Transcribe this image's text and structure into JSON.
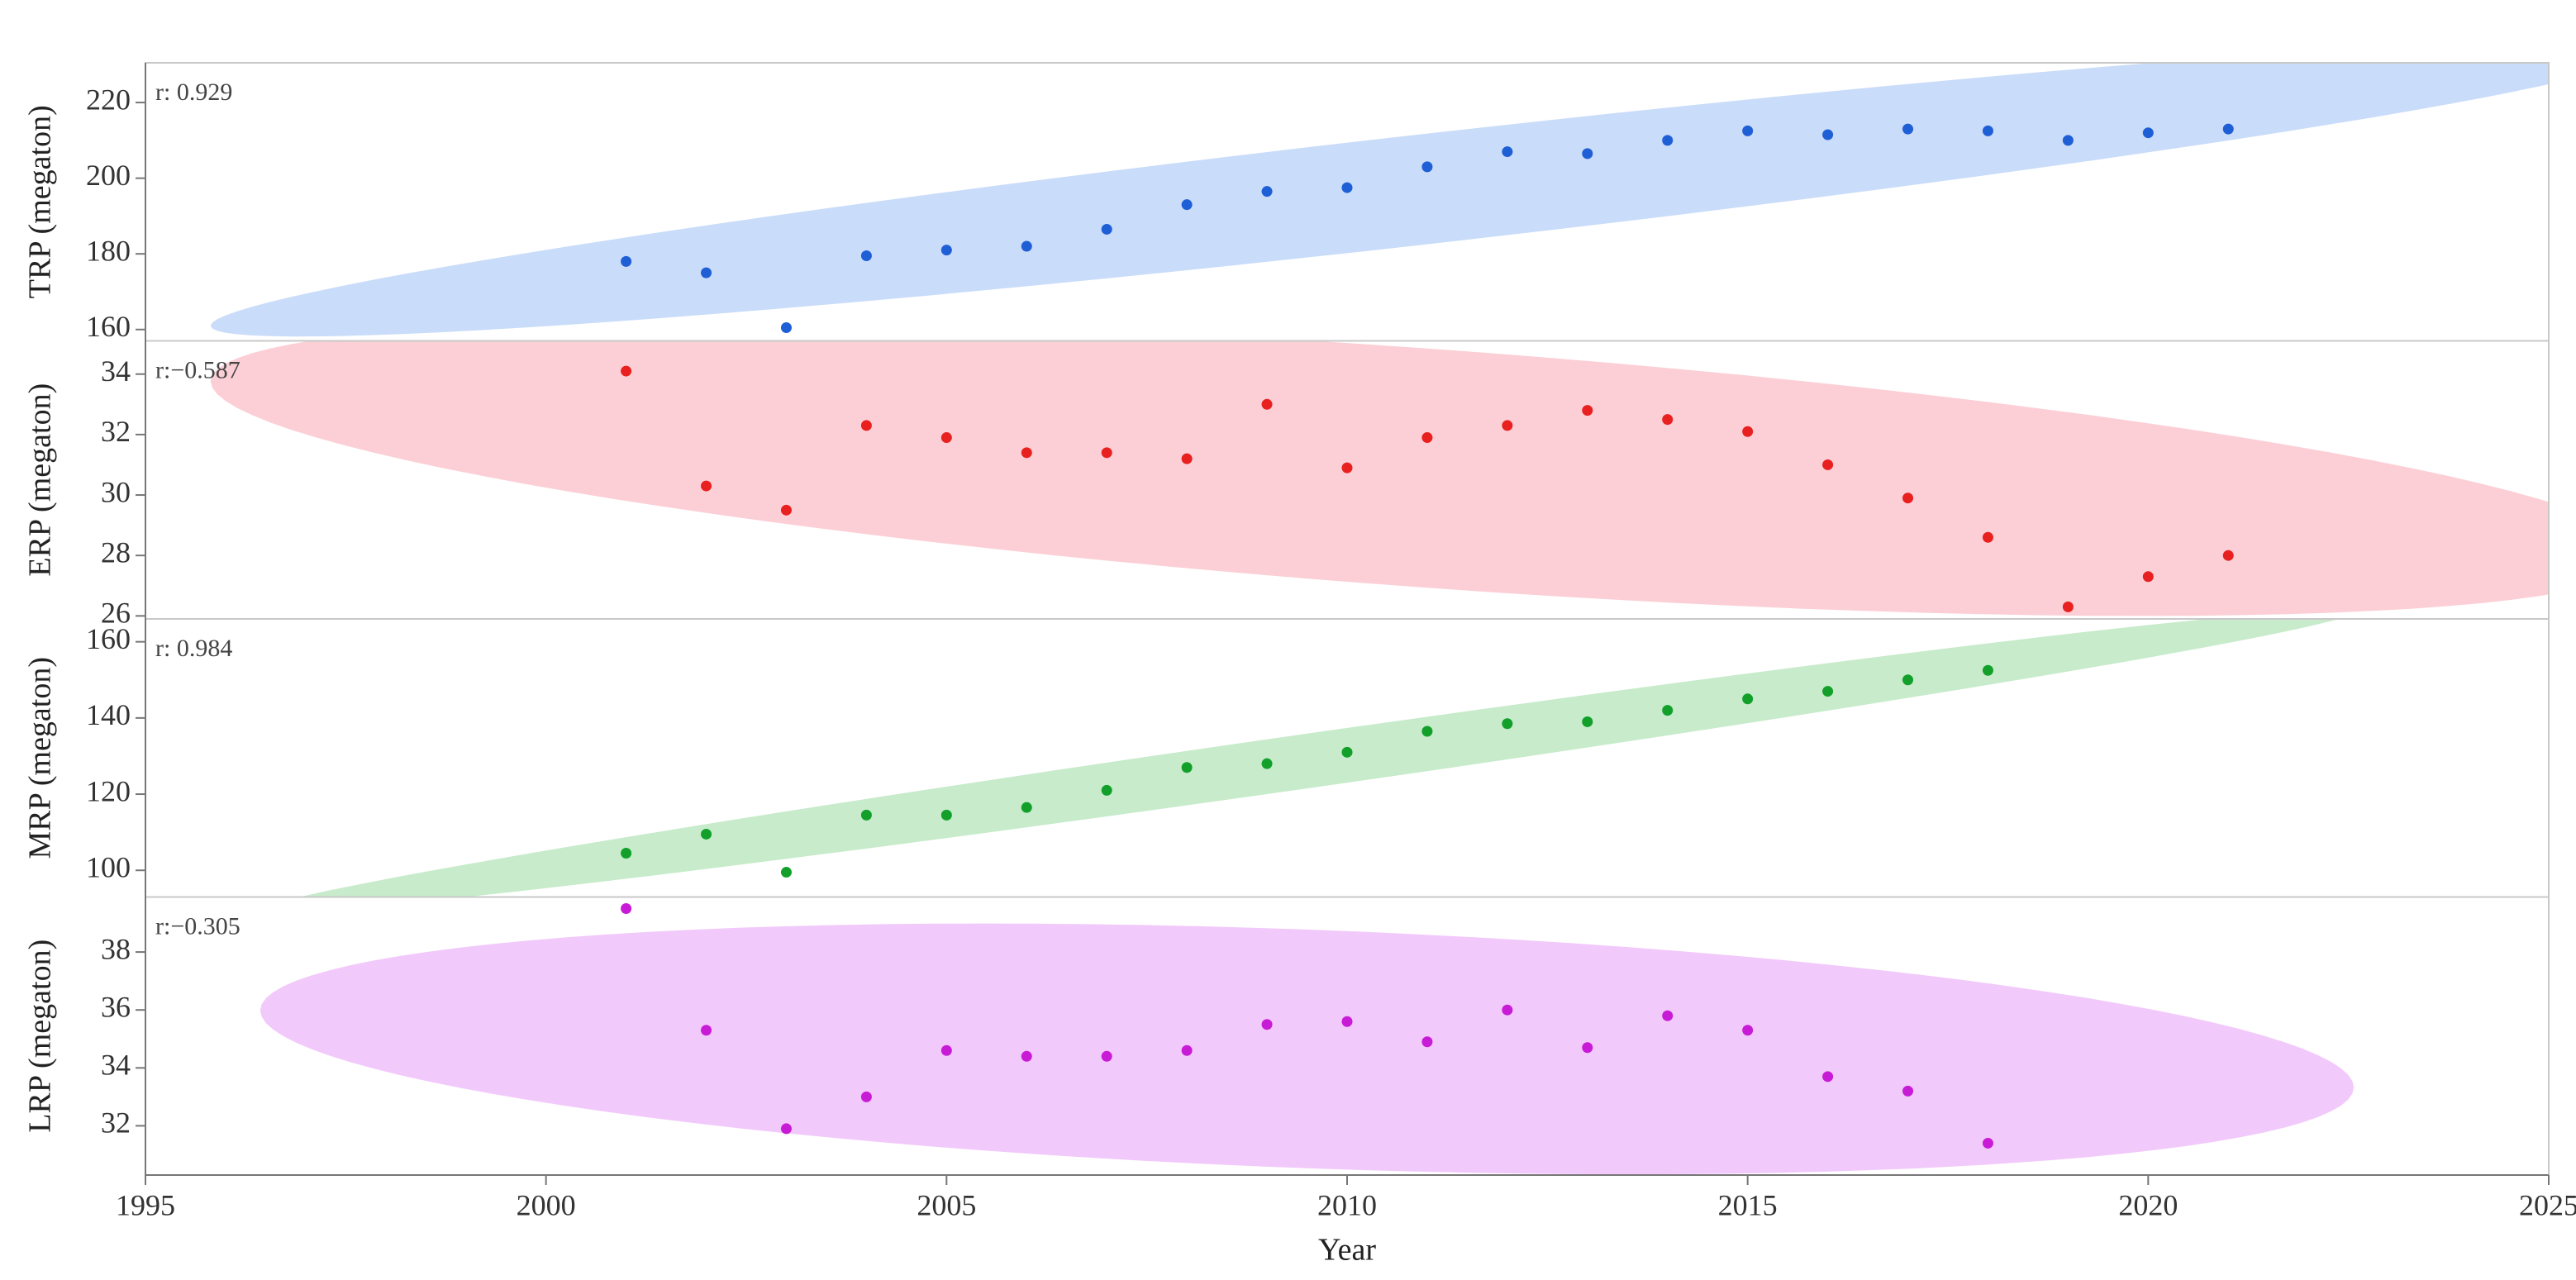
{
  "chart_data": [
    {
      "type": "scatter",
      "ylabel": "TRP (megaton)",
      "annotation": "r: 0.929",
      "color": "#1f5fd6",
      "ellipse_color": "#c9dcf9",
      "x": [
        2001,
        2002,
        2003,
        2004,
        2005,
        2006,
        2007,
        2008,
        2009,
        2010,
        2011,
        2012,
        2013,
        2014,
        2015,
        2016,
        2017,
        2018,
        2019,
        2020,
        2021
      ],
      "values": [
        178,
        175,
        160.5,
        179.5,
        181,
        182,
        186.5,
        193,
        196.5,
        197.5,
        203,
        207,
        206.5,
        210,
        212.5,
        211.5,
        213,
        212.5,
        210,
        212,
        213
      ],
      "ylim": [
        157,
        230.5
      ],
      "yticks": [
        160,
        180,
        200,
        220
      ]
    },
    {
      "type": "scatter",
      "ylabel": "ERP (megaton)",
      "annotation": "r:−0.587",
      "color": "#e8201f",
      "ellipse_color": "#fccfd6",
      "x": [
        2001,
        2002,
        2003,
        2004,
        2005,
        2006,
        2007,
        2008,
        2009,
        2010,
        2011,
        2012,
        2013,
        2014,
        2015,
        2016,
        2017,
        2018,
        2019,
        2020,
        2021
      ],
      "values": [
        34.1,
        30.3,
        29.5,
        32.3,
        31.9,
        31.4,
        31.4,
        31.2,
        33.0,
        30.9,
        31.9,
        32.3,
        32.8,
        32.5,
        32.1,
        31.0,
        29.9,
        28.6,
        26.3,
        27.3,
        28.0
      ],
      "ylim": [
        25.9,
        35.1
      ],
      "yticks": [
        26,
        28,
        30,
        32,
        34
      ]
    },
    {
      "type": "scatter",
      "ylabel": "MRP (megaton)",
      "annotation": "r: 0.984",
      "color": "#12a02a",
      "ellipse_color": "#c7ebcb",
      "x": [
        2001,
        2002,
        2003,
        2004,
        2005,
        2006,
        2007,
        2008,
        2009,
        2010,
        2011,
        2012,
        2013,
        2014,
        2015,
        2016,
        2017,
        2018
      ],
      "values": [
        104.5,
        109.5,
        99.5,
        114.5,
        114.5,
        116.5,
        121,
        127,
        128,
        131,
        136.5,
        138.5,
        139,
        142,
        145,
        147,
        150,
        152.5
      ],
      "ylim": [
        93,
        166
      ],
      "yticks": [
        100,
        120,
        140,
        160
      ]
    },
    {
      "type": "scatter",
      "ylabel": "LRP (megaton)",
      "annotation": "r:−0.305",
      "color": "#c81bd6",
      "ellipse_color": "#f2c9fb",
      "x": [
        2001,
        2002,
        2003,
        2004,
        2005,
        2006,
        2007,
        2008,
        2009,
        2010,
        2011,
        2012,
        2013,
        2014,
        2015,
        2016,
        2017,
        2018
      ],
      "values": [
        39.5,
        35.3,
        31.9,
        33.0,
        34.6,
        34.4,
        34.4,
        34.6,
        35.5,
        35.6,
        34.9,
        36.0,
        34.7,
        35.8,
        35.3,
        33.7,
        33.2,
        31.4
      ],
      "ylim": [
        30.3,
        39.9
      ],
      "yticks": [
        32,
        34,
        36,
        38
      ],
      "xlabel": "Year",
      "xlim": [
        1995,
        2025
      ],
      "xticks": [
        1995,
        2000,
        2005,
        2010,
        2015,
        2020,
        2025
      ]
    }
  ]
}
